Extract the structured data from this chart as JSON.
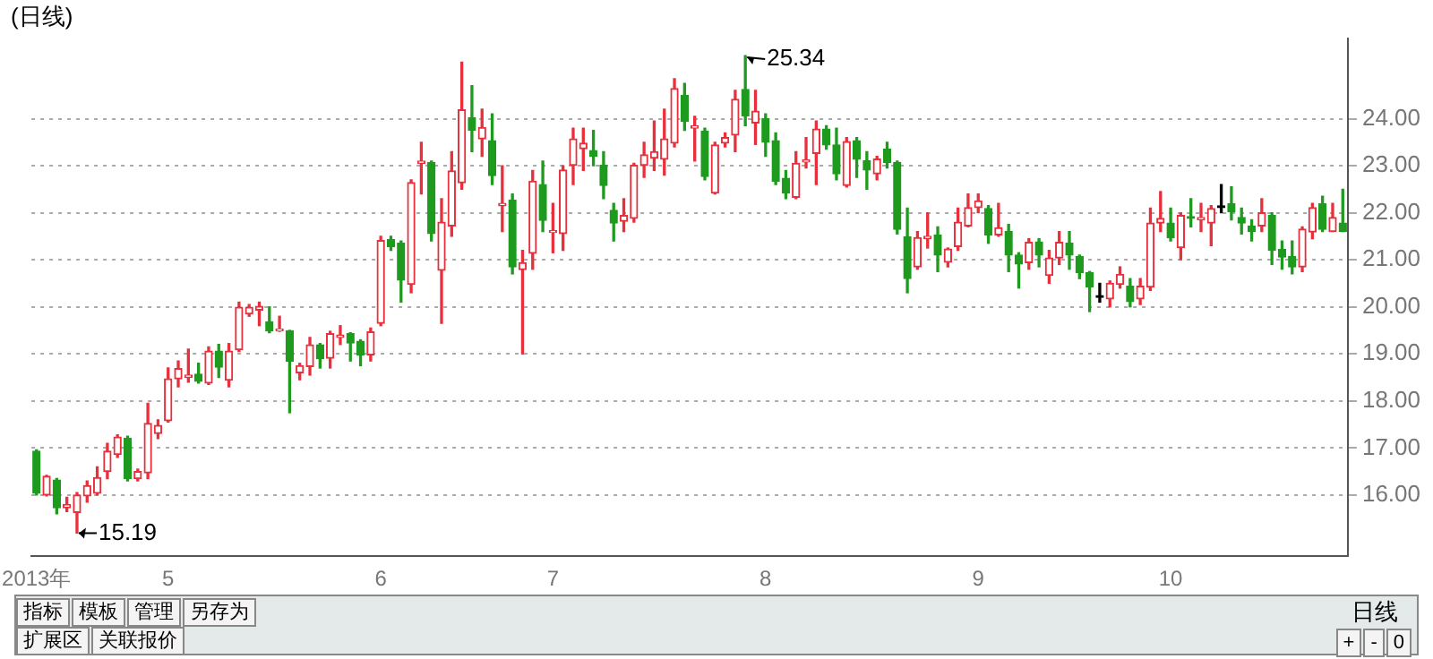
{
  "chart_data": {
    "type": "candlestick",
    "title": "(日线)",
    "categories": [
      "2013年",
      null,
      null,
      null,
      null,
      null,
      null,
      null,
      null,
      null,
      null,
      null,
      null,
      "5",
      null,
      null,
      null,
      null,
      null,
      null,
      null,
      null,
      null,
      null,
      null,
      null,
      null,
      null,
      null,
      null,
      null,
      null,
      null,
      null,
      "6",
      null,
      null,
      null,
      null,
      null,
      null,
      null,
      null,
      null,
      null,
      null,
      null,
      null,
      null,
      null,
      null,
      "7",
      null,
      null,
      null,
      null,
      null,
      null,
      null,
      null,
      null,
      null,
      null,
      null,
      null,
      null,
      null,
      null,
      null,
      null,
      null,
      null,
      "8",
      null,
      null,
      null,
      null,
      null,
      null,
      null,
      null,
      null,
      null,
      null,
      null,
      null,
      null,
      null,
      null,
      null,
      null,
      null,
      null,
      "9",
      null,
      null,
      null,
      null,
      null,
      null,
      null,
      null,
      null,
      null,
      null,
      null,
      null,
      null,
      null,
      null,
      null,
      null,
      "10",
      null,
      null,
      null,
      null,
      null,
      null,
      null,
      null,
      null,
      null,
      null,
      null,
      null,
      null,
      null,
      null,
      null
    ],
    "ohlc": [
      [
        16.93,
        16.96,
        16.0,
        16.04
      ],
      [
        16.0,
        16.42,
        15.98,
        16.4
      ],
      [
        16.32,
        16.35,
        15.6,
        15.73
      ],
      [
        15.73,
        15.95,
        15.65,
        15.8
      ],
      [
        15.63,
        16.05,
        15.19,
        16.0
      ],
      [
        15.98,
        16.3,
        15.85,
        16.2
      ],
      [
        16.04,
        16.6,
        16.0,
        16.37
      ],
      [
        16.5,
        17.1,
        16.35,
        16.93
      ],
      [
        16.86,
        17.28,
        16.8,
        17.23
      ],
      [
        17.21,
        17.25,
        16.3,
        16.35
      ],
      [
        16.35,
        16.55,
        16.3,
        16.5
      ],
      [
        16.47,
        17.95,
        16.35,
        17.52
      ],
      [
        17.31,
        17.6,
        17.2,
        17.48
      ],
      [
        17.58,
        18.7,
        17.55,
        18.47
      ],
      [
        18.47,
        18.85,
        18.3,
        18.69
      ],
      [
        18.5,
        19.1,
        18.4,
        18.55
      ],
      [
        18.57,
        18.8,
        18.38,
        18.42
      ],
      [
        18.38,
        19.15,
        18.35,
        19.06
      ],
      [
        19.06,
        19.2,
        18.5,
        18.72
      ],
      [
        18.44,
        19.22,
        18.3,
        19.06
      ],
      [
        19.09,
        20.1,
        19.05,
        19.99
      ],
      [
        19.85,
        20.05,
        19.8,
        19.99
      ],
      [
        19.93,
        20.1,
        19.6,
        20.01
      ],
      [
        19.68,
        20.0,
        19.45,
        19.49
      ],
      [
        19.49,
        19.8,
        19.48,
        19.52
      ],
      [
        19.49,
        19.5,
        17.75,
        18.84
      ],
      [
        18.6,
        18.8,
        18.45,
        18.75
      ],
      [
        18.73,
        19.35,
        18.55,
        19.19
      ],
      [
        19.19,
        19.22,
        18.7,
        18.9
      ],
      [
        18.91,
        19.48,
        18.7,
        19.43
      ],
      [
        19.35,
        19.6,
        19.2,
        19.4
      ],
      [
        19.43,
        19.45,
        18.85,
        19.23
      ],
      [
        19.27,
        19.3,
        18.75,
        18.98
      ],
      [
        18.98,
        19.55,
        18.85,
        19.47
      ],
      [
        19.65,
        21.5,
        19.6,
        21.41
      ],
      [
        21.43,
        21.5,
        21.2,
        21.28
      ],
      [
        21.35,
        21.4,
        20.1,
        20.57
      ],
      [
        20.48,
        22.7,
        20.3,
        22.64
      ],
      [
        23.05,
        23.5,
        22.4,
        23.1
      ],
      [
        23.07,
        23.1,
        21.4,
        21.56
      ],
      [
        20.78,
        22.3,
        19.65,
        21.8
      ],
      [
        21.72,
        23.3,
        21.5,
        22.89
      ],
      [
        22.64,
        25.2,
        22.5,
        24.19
      ],
      [
        24.02,
        24.7,
        23.3,
        23.75
      ],
      [
        23.57,
        24.2,
        23.2,
        23.81
      ],
      [
        23.53,
        24.1,
        22.6,
        22.79
      ],
      [
        22.15,
        23.0,
        21.6,
        22.2
      ],
      [
        22.27,
        22.4,
        20.7,
        20.85
      ],
      [
        20.79,
        21.2,
        19.0,
        20.94
      ],
      [
        21.14,
        22.9,
        20.8,
        22.67
      ],
      [
        22.6,
        23.1,
        21.6,
        21.84
      ],
      [
        21.58,
        22.2,
        21.15,
        21.6
      ],
      [
        21.56,
        23.0,
        21.2,
        22.91
      ],
      [
        23.01,
        23.8,
        22.6,
        23.57
      ],
      [
        23.36,
        23.8,
        22.9,
        23.48
      ],
      [
        23.32,
        23.75,
        23.0,
        23.2
      ],
      [
        23.01,
        23.3,
        22.3,
        22.58
      ],
      [
        22.05,
        22.2,
        21.4,
        21.78
      ],
      [
        21.82,
        22.3,
        21.6,
        21.94
      ],
      [
        21.88,
        23.05,
        21.8,
        23.01
      ],
      [
        23.01,
        23.5,
        22.75,
        23.23
      ],
      [
        23.16,
        23.95,
        22.9,
        23.3
      ],
      [
        23.14,
        24.2,
        22.8,
        23.57
      ],
      [
        23.48,
        24.85,
        23.4,
        24.64
      ],
      [
        24.49,
        24.75,
        23.75,
        23.94
      ],
      [
        23.8,
        24.05,
        23.1,
        23.85
      ],
      [
        23.73,
        23.8,
        22.7,
        22.77
      ],
      [
        22.42,
        23.5,
        22.4,
        23.44
      ],
      [
        23.48,
        23.7,
        23.4,
        23.6
      ],
      [
        23.65,
        24.6,
        23.3,
        24.41
      ],
      [
        24.62,
        25.34,
        23.85,
        24.06
      ],
      [
        23.91,
        24.6,
        23.45,
        24.16
      ],
      [
        24.0,
        24.1,
        23.2,
        23.5
      ],
      [
        23.53,
        23.7,
        22.6,
        22.67
      ],
      [
        22.73,
        22.9,
        22.3,
        22.42
      ],
      [
        22.33,
        23.3,
        22.3,
        23.05
      ],
      [
        23.08,
        23.6,
        22.95,
        23.12
      ],
      [
        23.26,
        23.95,
        22.6,
        23.78
      ],
      [
        23.78,
        23.85,
        23.35,
        23.44
      ],
      [
        23.44,
        23.8,
        22.7,
        22.83
      ],
      [
        22.58,
        23.6,
        22.55,
        23.51
      ],
      [
        23.53,
        23.6,
        22.75,
        23.14
      ],
      [
        23.11,
        23.3,
        22.5,
        22.91
      ],
      [
        22.83,
        23.2,
        22.7,
        23.14
      ],
      [
        23.35,
        23.5,
        22.95,
        23.07
      ],
      [
        23.07,
        23.1,
        21.55,
        21.65
      ],
      [
        21.49,
        22.1,
        20.3,
        20.6
      ],
      [
        20.85,
        21.6,
        20.8,
        21.47
      ],
      [
        21.45,
        22.0,
        21.25,
        21.5
      ],
      [
        21.53,
        21.7,
        20.75,
        21.1
      ],
      [
        20.95,
        21.25,
        20.85,
        21.23
      ],
      [
        21.28,
        22.1,
        21.2,
        21.8
      ],
      [
        21.72,
        22.4,
        21.7,
        22.11
      ],
      [
        22.11,
        22.4,
        22.0,
        22.25
      ],
      [
        22.09,
        22.15,
        21.35,
        21.53
      ],
      [
        21.53,
        22.2,
        21.5,
        21.68
      ],
      [
        21.6,
        21.75,
        20.75,
        21.1
      ],
      [
        21.1,
        21.15,
        20.4,
        20.91
      ],
      [
        20.94,
        21.45,
        20.8,
        21.37
      ],
      [
        21.38,
        21.45,
        20.85,
        21.1
      ],
      [
        20.67,
        21.2,
        20.5,
        21.04
      ],
      [
        21.04,
        21.6,
        20.9,
        21.37
      ],
      [
        21.35,
        21.6,
        20.8,
        21.1
      ],
      [
        21.07,
        21.1,
        20.6,
        20.73
      ],
      [
        20.73,
        20.75,
        19.9,
        20.42
      ],
      [
        20.2,
        20.5,
        20.1,
        20.2
      ],
      [
        20.17,
        20.55,
        20.0,
        20.5
      ],
      [
        20.48,
        20.85,
        20.4,
        20.69
      ],
      [
        20.44,
        20.6,
        20.0,
        20.11
      ],
      [
        20.17,
        20.6,
        20.05,
        20.44
      ],
      [
        20.42,
        22.1,
        20.35,
        21.78
      ],
      [
        21.78,
        22.45,
        21.6,
        21.88
      ],
      [
        21.78,
        22.1,
        21.4,
        21.47
      ],
      [
        21.26,
        22.0,
        21.0,
        21.94
      ],
      [
        21.92,
        22.3,
        21.7,
        21.88
      ],
      [
        21.85,
        22.2,
        21.6,
        21.9
      ],
      [
        21.78,
        22.15,
        21.3,
        22.09
      ],
      [
        22.11,
        22.6,
        22.0,
        22.11
      ],
      [
        22.19,
        22.55,
        21.85,
        22.02
      ],
      [
        21.9,
        22.1,
        21.55,
        21.78
      ],
      [
        21.72,
        21.85,
        21.4,
        21.6
      ],
      [
        21.72,
        22.3,
        21.6,
        22.0
      ],
      [
        21.94,
        22.0,
        20.9,
        21.2
      ],
      [
        21.22,
        21.4,
        20.8,
        21.06
      ],
      [
        21.07,
        21.4,
        20.7,
        20.85
      ],
      [
        20.85,
        21.7,
        20.75,
        21.65
      ],
      [
        21.59,
        22.2,
        21.45,
        22.11
      ],
      [
        22.19,
        22.35,
        21.6,
        21.65
      ],
      [
        21.6,
        22.2,
        21.6,
        21.9
      ],
      [
        21.78,
        22.5,
        21.6,
        21.6
      ]
    ],
    "colors": [
      "#1e9b1e",
      "#e8303c",
      "#1e9b1e",
      "#e8303c",
      "#e8303c",
      "#e8303c",
      "#e8303c",
      "#e8303c",
      "#e8303c",
      "#1e9b1e",
      "#e8303c",
      "#e8303c",
      "#e8303c",
      "#e8303c",
      "#e8303c",
      "#e8303c",
      "#1e9b1e",
      "#e8303c",
      "#1e9b1e",
      "#e8303c",
      "#e8303c",
      "#e8303c",
      "#e8303c",
      "#1e9b1e",
      "#e8303c",
      "#1e9b1e",
      "#e8303c",
      "#e8303c",
      "#1e9b1e",
      "#e8303c",
      "#e8303c",
      "#1e9b1e",
      "#1e9b1e",
      "#e8303c",
      "#e8303c",
      "#1e9b1e",
      "#1e9b1e",
      "#e8303c",
      "#e8303c",
      "#1e9b1e",
      "#e8303c",
      "#e8303c",
      "#e8303c",
      "#1e9b1e",
      "#e8303c",
      "#1e9b1e",
      "#e8303c",
      "#1e9b1e",
      "#e8303c",
      "#e8303c",
      "#1e9b1e",
      "#e8303c",
      "#e8303c",
      "#e8303c",
      "#e8303c",
      "#1e9b1e",
      "#1e9b1e",
      "#1e9b1e",
      "#e8303c",
      "#e8303c",
      "#e8303c",
      "#e8303c",
      "#e8303c",
      "#e8303c",
      "#1e9b1e",
      "#e8303c",
      "#1e9b1e",
      "#e8303c",
      "#e8303c",
      "#e8303c",
      "#1e9b1e",
      "#e8303c",
      "#1e9b1e",
      "#1e9b1e",
      "#1e9b1e",
      "#e8303c",
      "#e8303c",
      "#e8303c",
      "#1e9b1e",
      "#1e9b1e",
      "#e8303c",
      "#1e9b1e",
      "#1e9b1e",
      "#e8303c",
      "#1e9b1e",
      "#1e9b1e",
      "#1e9b1e",
      "#e8303c",
      "#e8303c",
      "#1e9b1e",
      "#e8303c",
      "#e8303c",
      "#e8303c",
      "#e8303c",
      "#1e9b1e",
      "#e8303c",
      "#1e9b1e",
      "#1e9b1e",
      "#e8303c",
      "#1e9b1e",
      "#e8303c",
      "#e8303c",
      "#1e9b1e",
      "#1e9b1e",
      "#1e9b1e",
      "#000000",
      "#e8303c",
      "#e8303c",
      "#1e9b1e",
      "#e8303c",
      "#e8303c",
      "#e8303c",
      "#1e9b1e",
      "#e8303c",
      "#1e9b1e",
      "#e8303c",
      "#e8303c",
      "#000000",
      "#1e9b1e",
      "#1e9b1e",
      "#1e9b1e",
      "#e8303c",
      "#1e9b1e",
      "#1e9b1e",
      "#1e9b1e",
      "#e8303c",
      "#e8303c",
      "#1e9b1e",
      "#e8303c",
      "#1e9b1e"
    ],
    "ylim": [
      14.7,
      25.7
    ],
    "yticks": [
      {
        "value": 16,
        "label": "16.00"
      },
      {
        "value": 17,
        "label": "17.00"
      },
      {
        "value": 18,
        "label": "18.00"
      },
      {
        "value": 19,
        "label": "19.00"
      },
      {
        "value": 20,
        "label": "20.00"
      },
      {
        "value": 21,
        "label": "21.00"
      },
      {
        "value": 22,
        "label": "22.00"
      },
      {
        "value": 23,
        "label": "23.00"
      },
      {
        "value": 24,
        "label": "24.00"
      }
    ],
    "grid": "y",
    "legend": false,
    "annotations": [
      "25.34",
      "15.19",
      "指标",
      "模板",
      "管理",
      "另存为",
      "扩展区",
      "关联报价",
      "日线",
      "+",
      "-",
      "0"
    ]
  }
}
